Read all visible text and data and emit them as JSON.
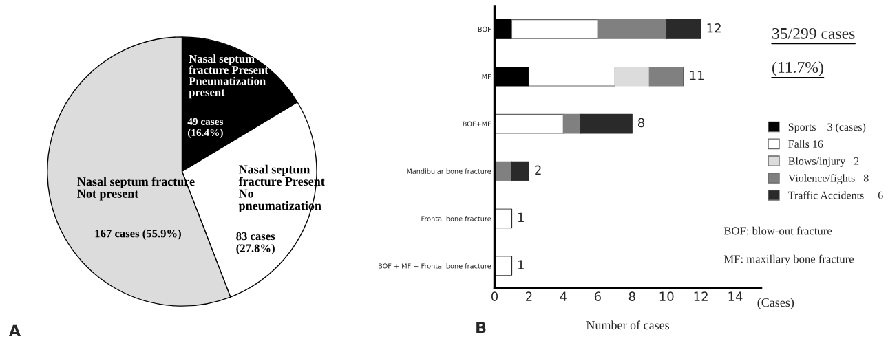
{
  "chart_data": [
    {
      "type": "pie",
      "categories": [
        "Nasal septum fracture Present Pneumatization present",
        "Nasal septum fracture Present No pneumatization",
        "Nasal septum fracture Not present"
      ],
      "values": [
        49,
        83,
        167
      ],
      "value_labels": [
        "49 cases (16.4%)",
        "83 cases (27.8%)",
        "167 cases (55.9%)"
      ],
      "colors": [
        "#000000",
        "#ffffff",
        "#dcdcdc"
      ],
      "annotations": [
        "A"
      ]
    },
    {
      "type": "bar",
      "orientation": "horizontal",
      "stacked": true,
      "categories": [
        "BOF",
        "MF",
        "BOF+MF",
        "Mandibular bone fracture",
        "Frontal bone fracture",
        "BOF + MF + Frontal bone fracture"
      ],
      "series": [
        {
          "name": "Sports    3 (cases)",
          "color": "#000000",
          "values": [
            1,
            2,
            0,
            0,
            0,
            0
          ]
        },
        {
          "name": "Falls 16",
          "color": "#ffffff",
          "values": [
            5,
            5,
            4,
            0,
            1,
            1
          ]
        },
        {
          "name": "Blows/injury   2",
          "color": "#dcdcdc",
          "values": [
            0,
            2,
            0,
            0,
            0,
            0
          ]
        },
        {
          "name": "Violence/fights   8",
          "color": "#808080",
          "values": [
            4,
            2,
            1,
            1,
            0,
            0
          ]
        },
        {
          "name": "Traffic Accidents     6",
          "color": "#2a2a2a",
          "values": [
            2,
            0,
            3,
            1,
            0,
            0
          ]
        }
      ],
      "totals": [
        "12",
        "11",
        "8",
        "2",
        "1",
        "1"
      ],
      "xlim": [
        0,
        15.5
      ],
      "xticks": [
        0,
        2,
        4,
        6,
        8,
        10,
        12,
        14
      ],
      "xlabel": "Number of cases",
      "grid": false,
      "legend": "right",
      "annotations": [
        "(Cases)",
        "35/299 cases\n(11.7%)",
        "BOF: blow-out fracture",
        "MF: maxillary bone fracture",
        "B"
      ]
    }
  ]
}
